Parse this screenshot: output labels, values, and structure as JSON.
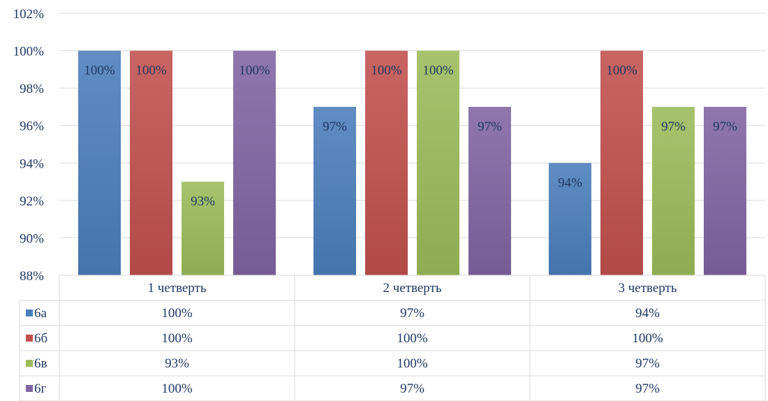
{
  "chart_data": {
    "type": "bar",
    "categories": [
      "1 четверть",
      "2 четверть",
      "3 четверть"
    ],
    "series": [
      {
        "name": "6а",
        "values": [
          100,
          97,
          94
        ],
        "color": "#4a7ebb"
      },
      {
        "name": "6б",
        "values": [
          100,
          100,
          100
        ],
        "color": "#c0504d"
      },
      {
        "name": "6в",
        "values": [
          93,
          100,
          97
        ],
        "color": "#9bbb59"
      },
      {
        "name": "6г",
        "values": [
          100,
          97,
          97
        ],
        "color": "#8064a2"
      }
    ],
    "data_labels": [
      [
        "100%",
        "97%",
        "94%"
      ],
      [
        "100%",
        "100%",
        "100%"
      ],
      [
        "93%",
        "100%",
        "97%"
      ],
      [
        "100%",
        "97%",
        "97%"
      ]
    ],
    "y_ticks": [
      "88%",
      "90%",
      "92%",
      "94%",
      "96%",
      "98%",
      "100%",
      "102%"
    ],
    "ylim": [
      88,
      102
    ],
    "grid": true,
    "legend": "data-table",
    "table": {
      "rows": [
        {
          "key": "6а",
          "cells": [
            "100%",
            "97%",
            "94%"
          ]
        },
        {
          "key": "6б",
          "cells": [
            "100%",
            "100%",
            "100%"
          ]
        },
        {
          "key": "6в",
          "cells": [
            "93%",
            "100%",
            "97%"
          ]
        },
        {
          "key": "6г",
          "cells": [
            "100%",
            "97%",
            "97%"
          ]
        }
      ]
    }
  }
}
